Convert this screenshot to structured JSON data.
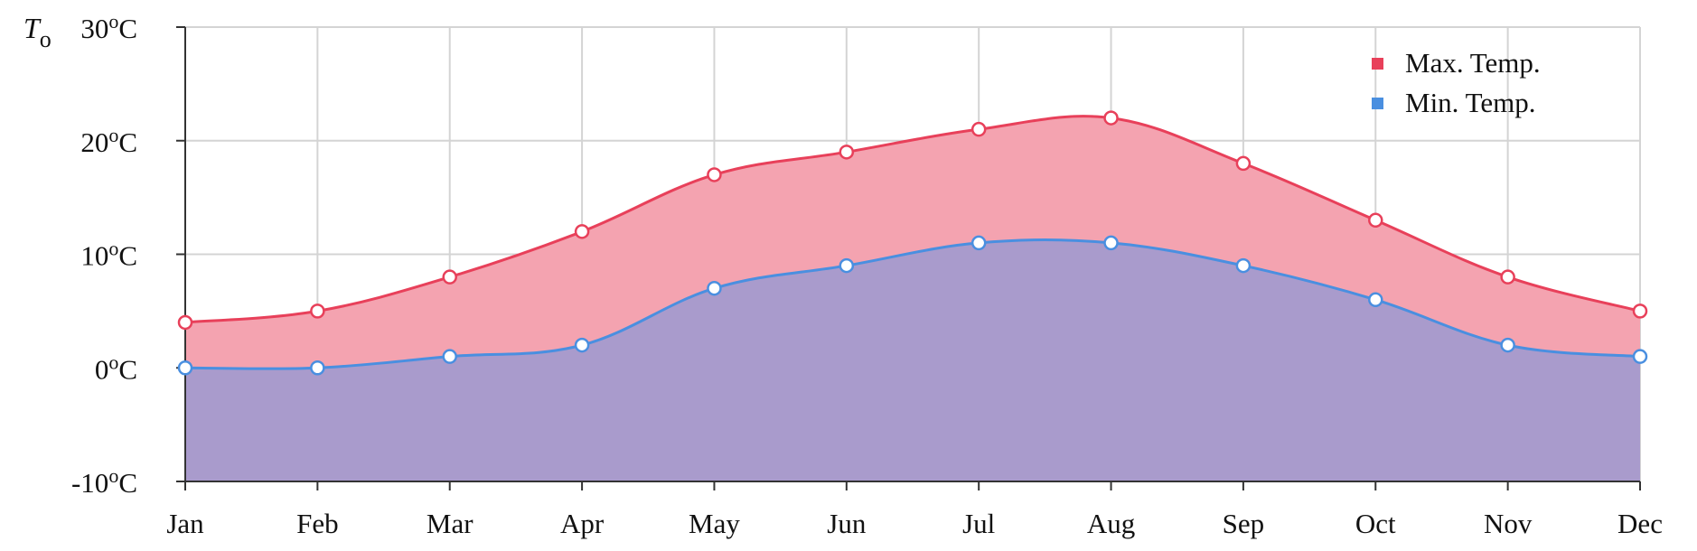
{
  "chart_data": {
    "type": "area",
    "categories": [
      "Jan",
      "Feb",
      "Mar",
      "Apr",
      "May",
      "Jun",
      "Jul",
      "Aug",
      "Sep",
      "Oct",
      "Nov",
      "Dec"
    ],
    "series": [
      {
        "name": "Max. Temp.",
        "color": "#e8405a",
        "fill": "#f4a3b0",
        "values": [
          4,
          5,
          8,
          12,
          17,
          19,
          21,
          22,
          18,
          13,
          8,
          5
        ]
      },
      {
        "name": "Min. Temp.",
        "color": "#4a8fe0",
        "fill": "#a99bcc",
        "values": [
          0,
          0,
          1,
          2,
          7,
          9,
          11,
          11,
          9,
          6,
          2,
          1
        ]
      }
    ],
    "ylabel_main": "T",
    "ylabel_sub": "o",
    "ylim": [
      -10,
      30
    ],
    "yticks": [
      {
        "value": -10,
        "prefix": "-10",
        "sup": "o",
        "suffix": "C"
      },
      {
        "value": 0,
        "prefix": "0",
        "sup": "o",
        "suffix": "C"
      },
      {
        "value": 10,
        "prefix": "10",
        "sup": "o",
        "suffix": "C"
      },
      {
        "value": 20,
        "prefix": "20",
        "sup": "o",
        "suffix": "C"
      },
      {
        "value": 30,
        "prefix": "30",
        "sup": "o",
        "suffix": "C"
      }
    ],
    "grid": true,
    "legend_position": "top-right"
  }
}
